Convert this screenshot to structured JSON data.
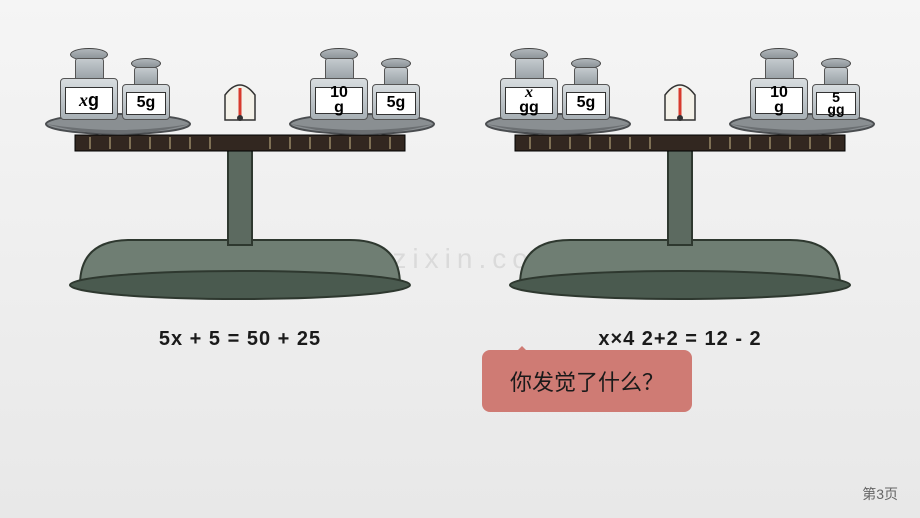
{
  "watermark": "www.zixin.com.cn",
  "page_number": "第3页",
  "callout": "你发觉了什么？",
  "scales": [
    {
      "left_weights": [
        {
          "label": "xg",
          "size": "large",
          "italic_first": true
        },
        {
          "label": "5g",
          "size": "small",
          "italic_first": false
        }
      ],
      "right_weights": [
        {
          "label": "10g",
          "size": "large",
          "italic_first": false,
          "wrap": true
        },
        {
          "label": "5g",
          "size": "small",
          "italic_first": false
        }
      ],
      "equation": "5x + 5 = 50 + 25"
    },
    {
      "left_weights": [
        {
          "label": "xgg",
          "size": "large",
          "italic_first": true,
          "wrap": true
        },
        {
          "label": "5g",
          "size": "small",
          "italic_first": false
        }
      ],
      "right_weights": [
        {
          "label": "10g",
          "size": "large",
          "italic_first": false,
          "wrap": true
        },
        {
          "label": "5gg",
          "size": "small",
          "italic_first": false,
          "wrap": true
        }
      ],
      "equation": "x×4 2+2 = 12 - 2"
    }
  ],
  "colors": {
    "base_dark": "#4a5a4f",
    "base_mid": "#6f7e73",
    "beam": "#322720",
    "pan": "#8a8f92",
    "pan_rim": "#4a4d50",
    "pointer_bg": "#f4f1e8",
    "pointer": "#d83a2b"
  }
}
